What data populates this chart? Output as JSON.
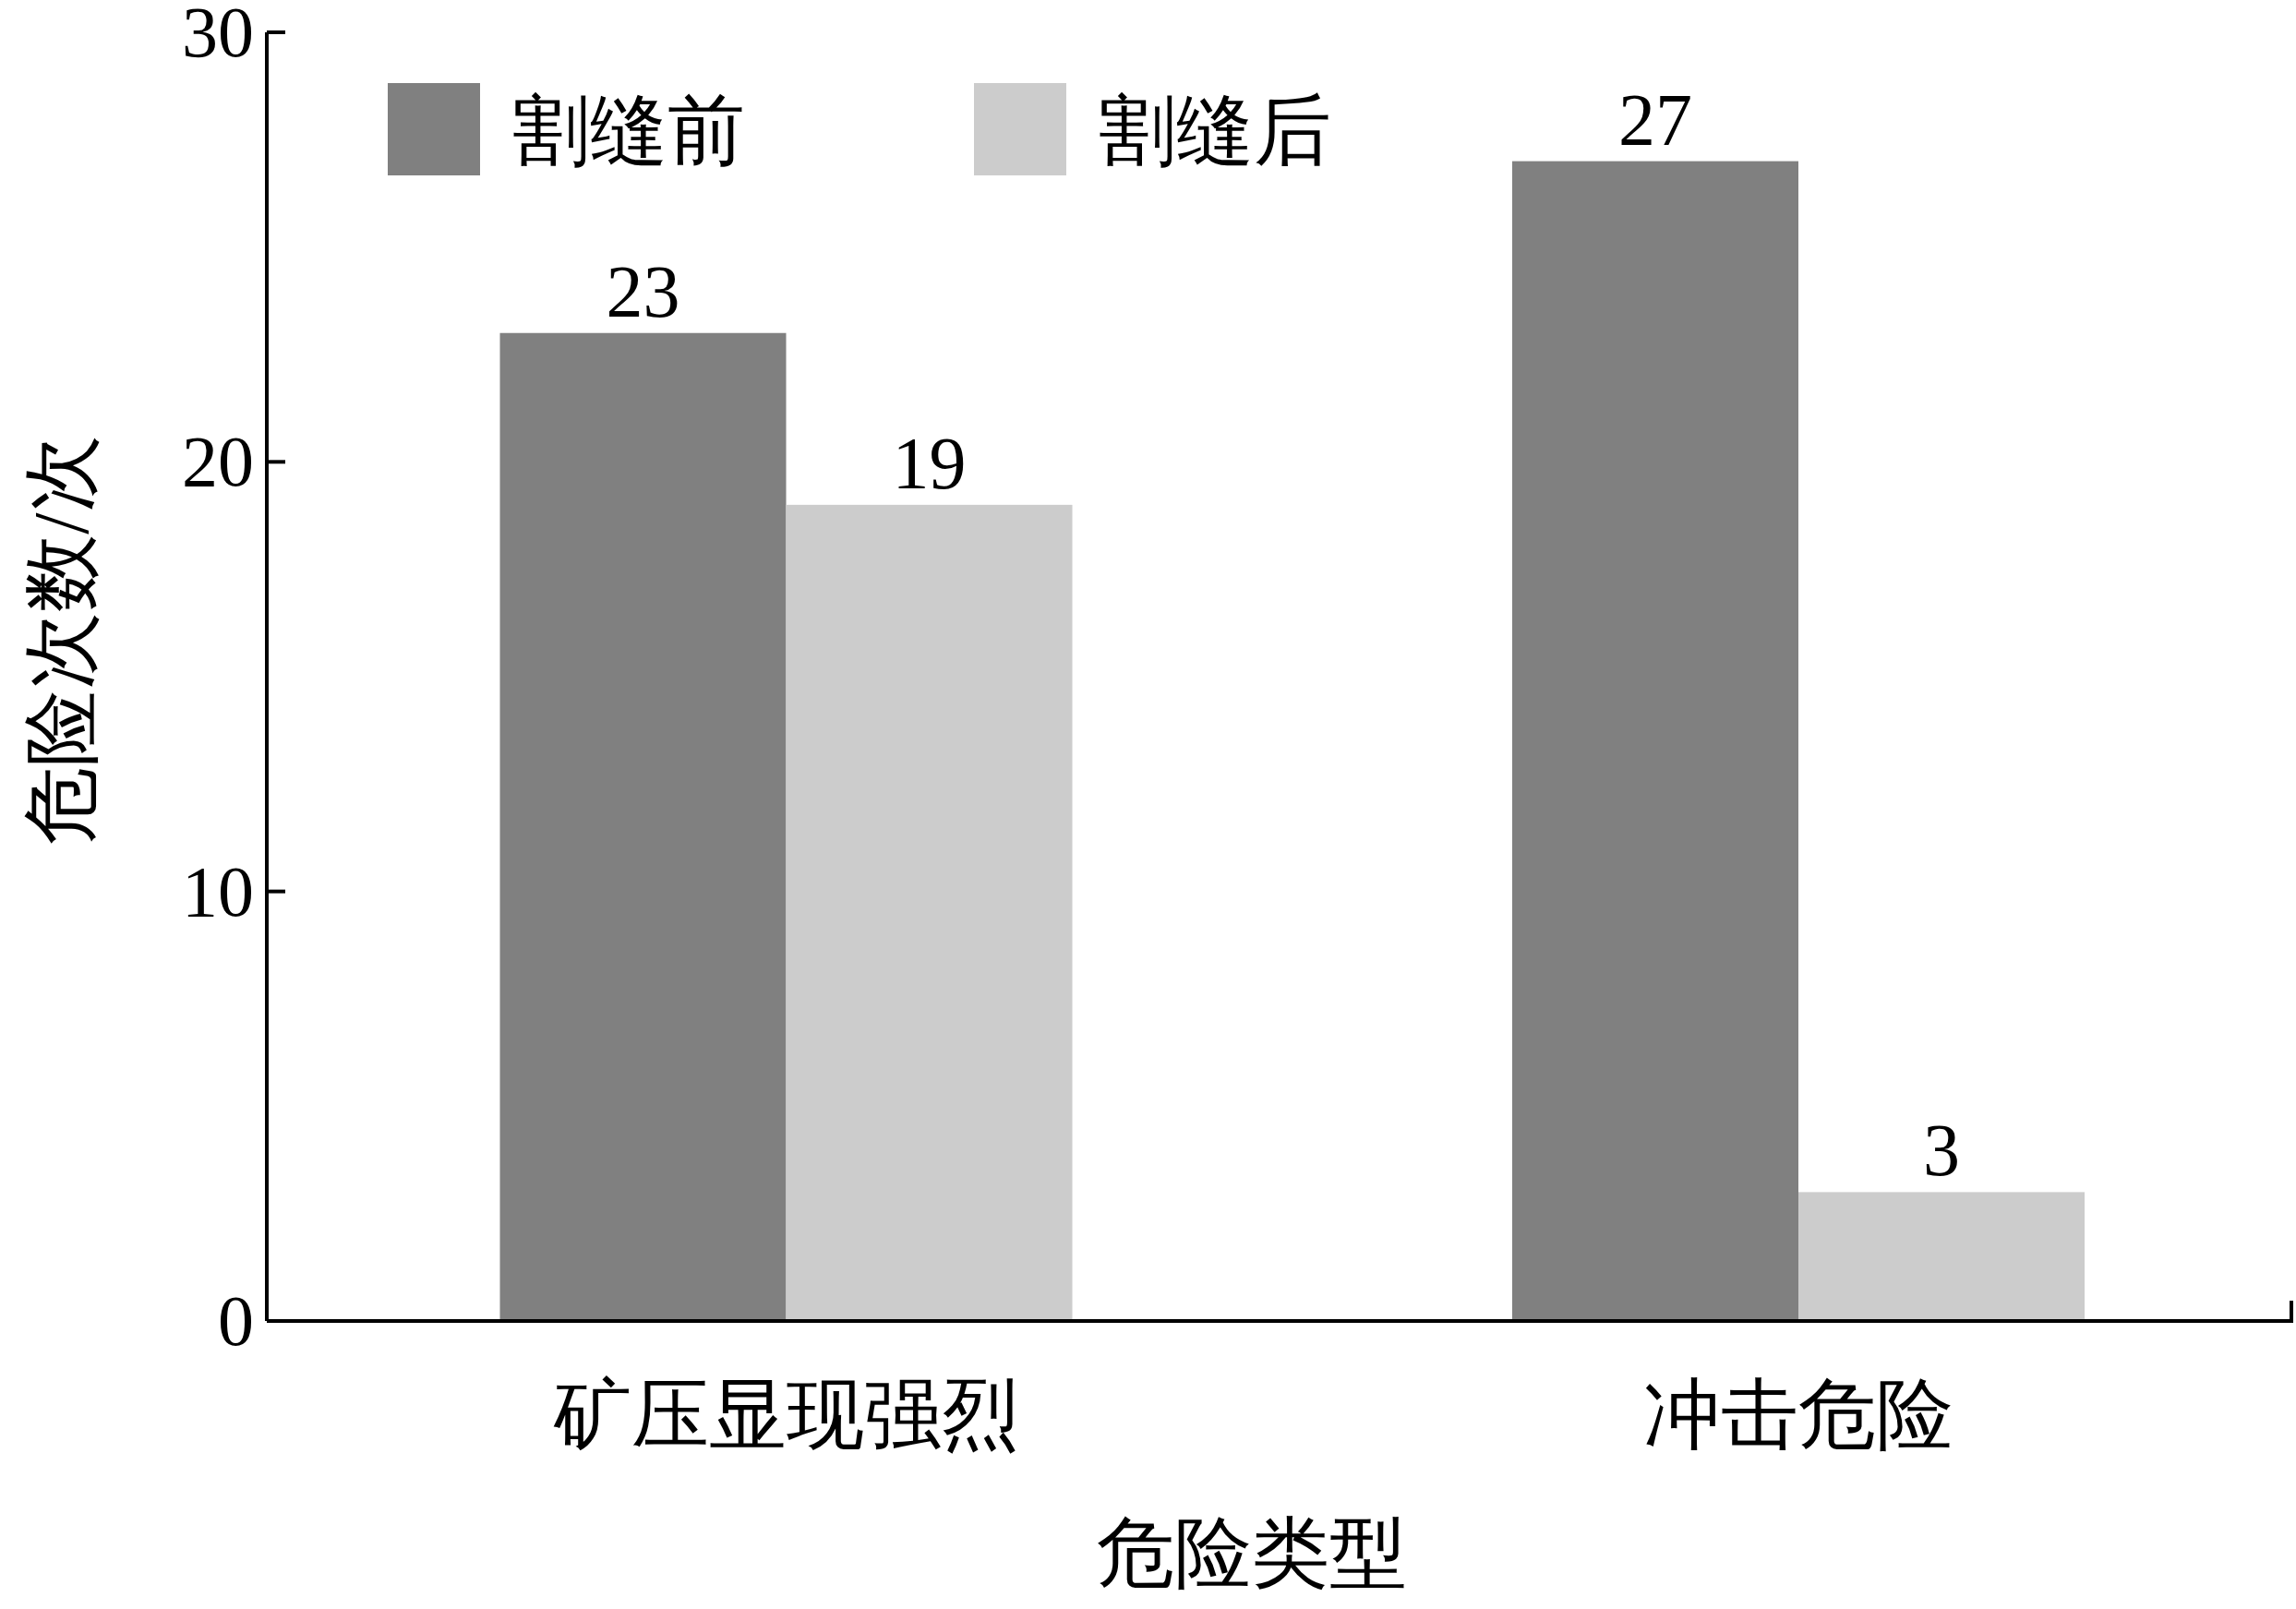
{
  "chart_data": {
    "type": "bar",
    "xlabel": "危险类型",
    "ylabel": "危险次数/次",
    "categories": [
      "矿压显现强烈",
      "冲击危险"
    ],
    "series": [
      {
        "name": "割缝前",
        "color": "#808080",
        "values": [
          23,
          27
        ]
      },
      {
        "name": "割缝后",
        "color": "#cccccc",
        "values": [
          19,
          3
        ]
      }
    ],
    "ylim": [
      0,
      30
    ],
    "yticks": [
      0,
      10,
      20,
      30
    ],
    "data_labels": true,
    "legend": "top left",
    "grid": false
  }
}
